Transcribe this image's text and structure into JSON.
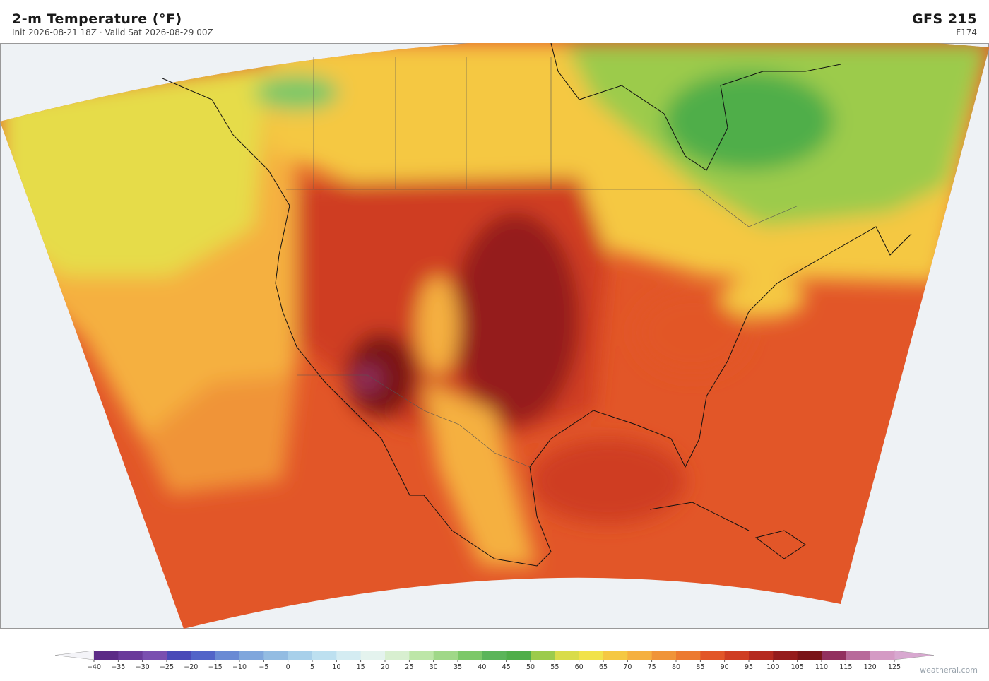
{
  "header": {
    "title": "2-m Temperature  (°F)",
    "subtitle": "Init 2026-08-21 18Z  ·  Valid Sat 2026-08-29 00Z",
    "model": "GFS  215",
    "forecast_hour": "F174"
  },
  "colorbar": {
    "ticks": [
      {
        "value": -40,
        "label": "−40"
      },
      {
        "value": -35,
        "label": "−35"
      },
      {
        "value": -30,
        "label": "−30"
      },
      {
        "value": -25,
        "label": "−25"
      },
      {
        "value": -20,
        "label": "−20"
      },
      {
        "value": -15,
        "label": "−15"
      },
      {
        "value": -10,
        "label": "−10"
      },
      {
        "value": -5,
        "label": "−5"
      },
      0,
      5,
      10,
      15,
      20,
      25,
      30,
      35,
      40,
      45,
      50,
      55,
      60,
      65,
      70,
      75,
      80,
      85,
      90,
      95,
      100,
      105,
      110,
      115,
      120,
      125
    ],
    "colors": [
      "#5b2a86",
      "#6a3a9a",
      "#7a4fb0",
      "#4a4ab8",
      "#5264c8",
      "#6a8ad4",
      "#7fa6dc",
      "#93bce2",
      "#a8d0ea",
      "#bde0f0",
      "#d4ecf2",
      "#e4f3ee",
      "#d8efd0",
      "#bde6a8",
      "#a0d888",
      "#7cc868",
      "#5bb55a",
      "#4fae4a",
      "#9ccb4c",
      "#d9dc4a",
      "#f1e24a",
      "#f5c842",
      "#f5b040",
      "#f09438",
      "#ec7a30",
      "#e25628",
      "#cf3d22",
      "#b52a1f",
      "#951c1c",
      "#7a1418",
      "#92305f",
      "#b86a9a",
      "#d49ac4"
    ],
    "under_color": "#f4f4f8",
    "over_color": "#d8a8d0"
  },
  "footer": {
    "site": "weatherai.com"
  }
}
